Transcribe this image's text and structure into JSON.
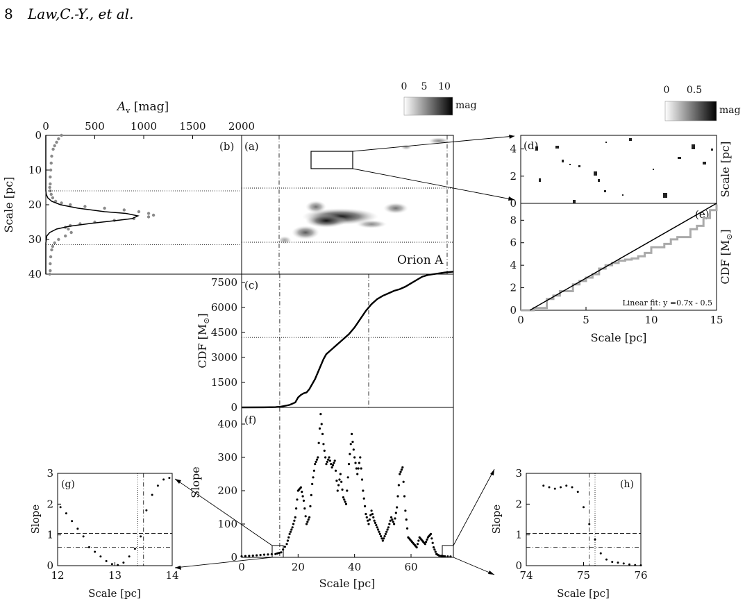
{
  "header": {
    "page_number": "8",
    "running_head": "Law,C.-Y., et al."
  },
  "colorbars": {
    "main": {
      "ticks": [
        "0",
        "5",
        "10"
      ],
      "unit": "mag"
    },
    "zoom": {
      "ticks": [
        "0",
        "0.5"
      ],
      "unit": "mag"
    }
  },
  "chart_data": [
    {
      "id": "b",
      "panel_label": "(b)",
      "type": "line",
      "xlabel": "A_v [mag]",
      "ylabel": "Scale [pc]",
      "xlim": [
        0,
        2000
      ],
      "ylim": [
        40,
        0
      ],
      "xticks": [
        "0",
        "500",
        "1000",
        "1500",
        "2000"
      ],
      "yticks": [
        "0",
        "10",
        "20",
        "30",
        "40"
      ],
      "series": [
        {
          "style": "gray-dots",
          "x": [
            160,
            130,
            110,
            90,
            75,
            60,
            55,
            50,
            45,
            45,
            40,
            45,
            55,
            70,
            100,
            160,
            250,
            400,
            600,
            800,
            950,
            1050,
            1100,
            1050,
            900,
            700,
            500,
            350,
            250,
            200,
            230,
            260,
            200,
            130,
            90,
            70,
            60,
            50,
            45,
            45,
            40
          ],
          "y": [
            0,
            1,
            2,
            3,
            4,
            6,
            8,
            10,
            12,
            14,
            15,
            16,
            17,
            18,
            19,
            19.5,
            20,
            20.5,
            21,
            21.5,
            22,
            22.5,
            23,
            23.5,
            24,
            24.5,
            25,
            25.5,
            26,
            26.5,
            27,
            28,
            29,
            30,
            31,
            32,
            33,
            35,
            37,
            39,
            40
          ]
        },
        {
          "style": "black-line",
          "x": [
            0,
            0,
            0,
            5,
            20,
            60,
            150,
            330,
            600,
            820,
            940,
            880,
            700,
            450,
            240,
            110,
            40,
            10,
            0,
            0
          ],
          "y": [
            0,
            10,
            16,
            17,
            18,
            19,
            20,
            21,
            22,
            22.5,
            23.2,
            24,
            24.6,
            25.4,
            26.2,
            27,
            28,
            29,
            31,
            40
          ]
        }
      ],
      "hlines": [
        {
          "y": 16,
          "style": "dotted"
        },
        {
          "y": 31.5,
          "style": "dotted"
        }
      ]
    },
    {
      "id": "a",
      "panel_label": "(a)",
      "type": "heatmap",
      "annotation": "Orion A",
      "ylim": [
        40,
        0
      ],
      "xlim": [
        0,
        75
      ]
    },
    {
      "id": "c",
      "panel_label": "(c)",
      "type": "line",
      "ylabel": "CDF [M_⊙]",
      "xlim": [
        0,
        75
      ],
      "ylim": [
        0,
        8000
      ],
      "yticks": [
        "0",
        "1500",
        "3000",
        "4500",
        "6000",
        "7500"
      ],
      "series": [
        {
          "x": [
            0,
            8,
            12,
            14,
            17,
            19,
            20,
            21,
            22,
            23,
            24,
            25,
            26,
            27,
            28,
            29,
            30,
            32,
            34,
            36,
            38,
            40,
            42,
            44,
            46,
            48,
            50,
            52,
            54,
            56,
            58,
            60,
            62,
            64,
            66,
            68,
            70,
            72,
            75
          ],
          "y": [
            0,
            5,
            20,
            50,
            150,
            300,
            600,
            750,
            850,
            900,
            1100,
            1400,
            1700,
            2100,
            2500,
            2900,
            3200,
            3500,
            3800,
            4100,
            4400,
            4800,
            5300,
            5800,
            6200,
            6500,
            6700,
            6850,
            7000,
            7100,
            7250,
            7450,
            7650,
            7850,
            7950,
            8000,
            8050,
            8100,
            8150
          ]
        }
      ],
      "vlines": [
        {
          "x": 13.5,
          "style": "dashdot"
        },
        {
          "x": 45,
          "style": "dashdot"
        },
        {
          "x": 75,
          "style": "dashdot"
        }
      ],
      "hlines": [
        {
          "y": 4200,
          "style": "dotted"
        }
      ]
    },
    {
      "id": "f",
      "panel_label": "(f)",
      "type": "scatter",
      "ylabel": "Slope",
      "xlabel": "Scale [pc]",
      "xlim": [
        0,
        75
      ],
      "ylim": [
        0,
        450
      ],
      "xticks": [
        "0",
        "20",
        "40",
        "60"
      ],
      "yticks": [
        "0",
        "100",
        "200",
        "300",
        "400"
      ],
      "series": [
        {
          "x": [
            0,
            4,
            8,
            12,
            14,
            16,
            17,
            18,
            19,
            20,
            21,
            22,
            23,
            24,
            25,
            26,
            27,
            28,
            29,
            30,
            31,
            32,
            33,
            34,
            35,
            36,
            37,
            38,
            39,
            40,
            41,
            42,
            43,
            44,
            45,
            46,
            47,
            48,
            49,
            50,
            51,
            52,
            53,
            54,
            55,
            56,
            57,
            58,
            59,
            60,
            61,
            62,
            63,
            64,
            65,
            66,
            67,
            68,
            69,
            70,
            72,
            75
          ],
          "y": [
            3,
            5,
            8,
            10,
            15,
            40,
            70,
            90,
            120,
            200,
            210,
            170,
            100,
            120,
            220,
            280,
            300,
            430,
            340,
            280,
            300,
            270,
            290,
            200,
            250,
            180,
            160,
            280,
            370,
            300,
            250,
            300,
            200,
            130,
            100,
            140,
            110,
            90,
            70,
            50,
            70,
            90,
            120,
            100,
            150,
            250,
            270,
            140,
            60,
            50,
            40,
            30,
            60,
            50,
            40,
            60,
            70,
            30,
            10,
            5,
            3,
            2
          ]
        }
      ],
      "vlines": [
        {
          "x": 13.5,
          "style": "dashdot"
        },
        {
          "x": 75,
          "style": "dashdot"
        }
      ]
    },
    {
      "id": "d",
      "panel_label": "(d)",
      "type": "heatmap",
      "ylabel": "Scale [pc]",
      "xlim": [
        0,
        15
      ],
      "ylim": [
        5,
        0
      ],
      "yticks": [
        "0",
        "2",
        "4"
      ]
    },
    {
      "id": "e",
      "panel_label": "(e)",
      "type": "line",
      "ylabel": "CDF [M_⊙]",
      "xlabel": "Scale [pc]",
      "annotation": "Linear fit:  y =0.7x - 0.5",
      "xlim": [
        0,
        15
      ],
      "ylim": [
        0,
        9.5
      ],
      "xticks": [
        "0",
        "5",
        "10",
        "15"
      ],
      "yticks": [
        "0",
        "2",
        "4",
        "6",
        "8"
      ],
      "series": [
        {
          "style": "gray-steps",
          "x": [
            0,
            1,
            2,
            2.5,
            3,
            4,
            4.5,
            5,
            5.5,
            6,
            6.5,
            7,
            7.5,
            8,
            8.5,
            9,
            9.5,
            10,
            11,
            11.5,
            12,
            13,
            13.5,
            14,
            14.5,
            15
          ],
          "y": [
            0,
            0.2,
            1.0,
            1.3,
            1.7,
            2.3,
            2.6,
            2.9,
            3.2,
            3.7,
            4.0,
            4.2,
            4.4,
            4.5,
            4.6,
            4.8,
            5.1,
            5.6,
            5.9,
            6.3,
            6.5,
            7.2,
            7.5,
            8.2,
            8.9,
            9.4
          ]
        },
        {
          "style": "fit-line",
          "x": [
            0.7,
            15
          ],
          "y": [
            0,
            10
          ]
        }
      ]
    },
    {
      "id": "g",
      "panel_label": "(g)",
      "type": "scatter",
      "ylabel": "Slope",
      "xlabel": "Scale [pc]",
      "xlim": [
        12,
        14
      ],
      "ylim": [
        0,
        3
      ],
      "xticks": [
        "12",
        "13",
        "14"
      ],
      "yticks": [
        "0",
        "1",
        "2",
        "3"
      ],
      "series": [
        {
          "x": [
            12.05,
            12.15,
            12.25,
            12.35,
            12.45,
            12.55,
            12.65,
            12.75,
            12.85,
            12.95,
            13.05,
            13.15,
            13.25,
            13.35,
            13.45,
            13.55,
            13.65,
            13.75,
            13.85,
            13.95
          ],
          "y": [
            1.9,
            1.7,
            1.45,
            1.2,
            0.95,
            0.6,
            0.45,
            0.3,
            0.15,
            0.05,
            0.02,
            0.1,
            0.3,
            0.55,
            0.95,
            1.8,
            2.3,
            2.6,
            2.8,
            2.85
          ]
        }
      ],
      "vlines": [
        {
          "x": 13.4,
          "style": "dotted"
        },
        {
          "x": 13.5,
          "style": "dashdot"
        }
      ],
      "hlines": [
        {
          "y": 1.05,
          "style": "dashed"
        },
        {
          "y": 0.6,
          "style": "dashdot"
        }
      ]
    },
    {
      "id": "h",
      "panel_label": "(h)",
      "type": "scatter",
      "ylabel": "Slope",
      "xlabel": "Scale [pc]",
      "xlim": [
        74,
        76
      ],
      "ylim": [
        0,
        3
      ],
      "xticks": [
        "74",
        "75",
        "76"
      ],
      "yticks": [
        "0",
        "1",
        "2",
        "3"
      ],
      "series": [
        {
          "x": [
            74.3,
            74.4,
            74.5,
            74.6,
            74.7,
            74.8,
            74.9,
            75.0,
            75.1,
            75.2,
            75.3,
            75.4,
            75.5,
            75.6,
            75.7,
            75.8,
            75.9,
            76.0
          ],
          "y": [
            2.6,
            2.55,
            2.5,
            2.55,
            2.6,
            2.55,
            2.4,
            1.9,
            1.35,
            0.85,
            0.4,
            0.2,
            0.12,
            0.1,
            0.07,
            0.04,
            0.02,
            0.01
          ]
        }
      ],
      "vlines": [
        {
          "x": 75.1,
          "style": "dashdot"
        },
        {
          "x": 75.2,
          "style": "dotted"
        }
      ],
      "hlines": [
        {
          "y": 1.05,
          "style": "dashed"
        },
        {
          "y": 0.6,
          "style": "dashdot"
        }
      ]
    }
  ]
}
